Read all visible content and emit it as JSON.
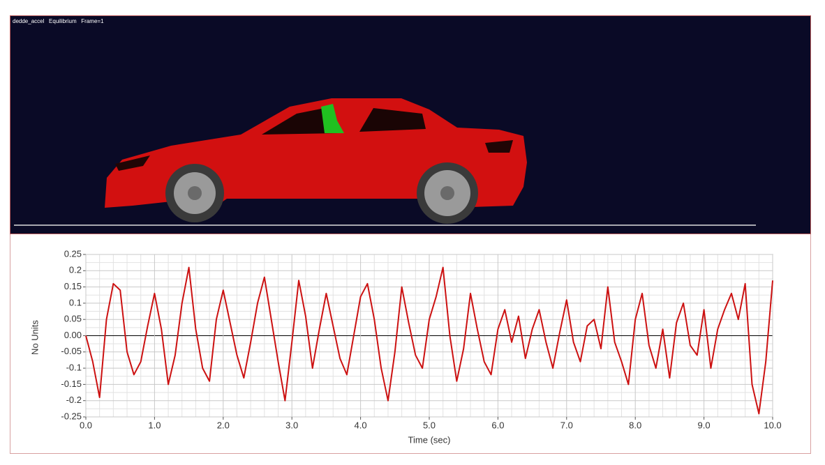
{
  "viewport": {
    "caption": "dedde_accel   Equilibrium   Frame=1"
  },
  "chart_data": {
    "type": "line",
    "x_label": "Time (sec)",
    "y_label": "No Units",
    "x": [
      0.0,
      0.1,
      0.2,
      0.3,
      0.4,
      0.5,
      0.6,
      0.7,
      0.8,
      0.9,
      1.0,
      1.1,
      1.2,
      1.3,
      1.4,
      1.5,
      1.6,
      1.7,
      1.8,
      1.9,
      2.0,
      2.1,
      2.2,
      2.3,
      2.4,
      2.5,
      2.6,
      2.7,
      2.8,
      2.9,
      3.0,
      3.1,
      3.2,
      3.3,
      3.4,
      3.5,
      3.6,
      3.7,
      3.8,
      3.9,
      4.0,
      4.1,
      4.2,
      4.3,
      4.4,
      4.5,
      4.6,
      4.7,
      4.8,
      4.9,
      5.0,
      5.1,
      5.2,
      5.3,
      5.4,
      5.5,
      5.6,
      5.7,
      5.8,
      5.9,
      6.0,
      6.1,
      6.2,
      6.3,
      6.4,
      6.5,
      6.6,
      6.7,
      6.8,
      6.9,
      7.0,
      7.1,
      7.2,
      7.3,
      7.4,
      7.5,
      7.6,
      7.7,
      7.8,
      7.9,
      8.0,
      8.1,
      8.2,
      8.3,
      8.4,
      8.5,
      8.6,
      8.7,
      8.8,
      8.9,
      9.0,
      9.1,
      9.2,
      9.3,
      9.4,
      9.5,
      9.6,
      9.7,
      9.8,
      9.9,
      10.0
    ],
    "series": [
      {
        "color": "#cc1111",
        "values": [
          0.0,
          -0.08,
          -0.19,
          0.05,
          0.16,
          0.14,
          -0.05,
          -0.12,
          -0.08,
          0.03,
          0.13,
          0.02,
          -0.15,
          -0.06,
          0.1,
          0.21,
          0.02,
          -0.1,
          -0.14,
          0.05,
          0.14,
          0.04,
          -0.06,
          -0.13,
          -0.02,
          0.1,
          0.18,
          0.05,
          -0.08,
          -0.2,
          -0.02,
          0.17,
          0.06,
          -0.1,
          0.02,
          0.13,
          0.03,
          -0.07,
          -0.12,
          0.0,
          0.12,
          0.16,
          0.05,
          -0.1,
          -0.2,
          -0.05,
          0.15,
          0.04,
          -0.06,
          -0.1,
          0.05,
          0.12,
          0.21,
          0.0,
          -0.14,
          -0.04,
          0.13,
          0.02,
          -0.08,
          -0.12,
          0.02,
          0.08,
          -0.02,
          0.06,
          -0.07,
          0.02,
          0.08,
          -0.02,
          -0.1,
          0.01,
          0.11,
          -0.02,
          -0.08,
          0.03,
          0.05,
          -0.04,
          0.15,
          -0.02,
          -0.08,
          -0.15,
          0.05,
          0.13,
          -0.03,
          -0.1,
          0.02,
          -0.13,
          0.04,
          0.1,
          -0.03,
          -0.06,
          0.08,
          -0.1,
          0.02,
          0.08,
          0.13,
          0.05,
          0.16,
          -0.15,
          -0.24,
          -0.08,
          0.17
        ]
      }
    ],
    "xlim": [
      0,
      10
    ],
    "ylim": [
      -0.25,
      0.25
    ],
    "xticks": [
      {
        "value": 0,
        "label": "0.0"
      },
      {
        "value": 1,
        "label": "1.0"
      },
      {
        "value": 2,
        "label": "2.0"
      },
      {
        "value": 3,
        "label": "3.0"
      },
      {
        "value": 4,
        "label": "4.0"
      },
      {
        "value": 5,
        "label": "5.0"
      },
      {
        "value": 6,
        "label": "6.0"
      },
      {
        "value": 7,
        "label": "7.0"
      },
      {
        "value": 8,
        "label": "8.0"
      },
      {
        "value": 9,
        "label": "9.0"
      },
      {
        "value": 10,
        "label": "10.0"
      }
    ],
    "yticks": [
      -0.25,
      -0.2,
      -0.15,
      -0.1,
      -0.05,
      {
        "value": 0,
        "label": "0.00"
      },
      0.05,
      0.1,
      0.15,
      0.2,
      0.25
    ],
    "grid": true
  }
}
